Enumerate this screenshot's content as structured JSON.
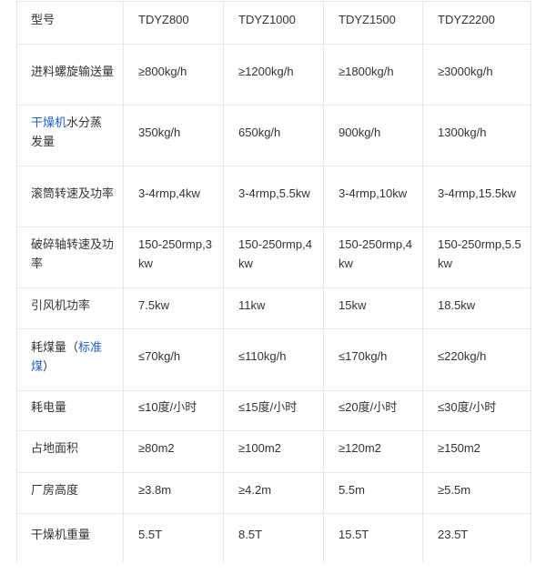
{
  "colors": {
    "link": "#1f5fcc",
    "text": "#333333",
    "border": "#e4e6f0"
  },
  "rows": [
    {
      "label": "型号",
      "values": [
        "TDYZ800",
        "TDYZ1000",
        "TDYZ1500",
        "TDYZ2200"
      ]
    },
    {
      "label": "进料螺旋输送量",
      "values": [
        "≥800kg/h",
        "≥1200kg/h",
        "≥1800kg/h",
        "≥3000kg/h"
      ]
    },
    {
      "label_link": "干燥机",
      "label": "水分蒸发量",
      "values": [
        "350kg/h",
        "650kg/h",
        "900kg/h",
        "1300kg/h"
      ]
    },
    {
      "label": "滚筒转速及功率",
      "values": [
        "3-4rmp,4kw",
        "3-4rmp,5.5kw",
        "3-4rmp,10kw",
        "3-4rmp,15.5kw"
      ]
    },
    {
      "label": "破碎轴转速及功率",
      "values": [
        "150-250rmp,3kw",
        "150-250rmp,4kw",
        "150-250rmp,4kw",
        "150-250rmp,5.5kw"
      ]
    },
    {
      "label": "引风机功率",
      "values": [
        "7.5kw",
        "11kw",
        "15kw",
        "18.5kw"
      ]
    },
    {
      "label": "耗煤量（",
      "label_link": "标准煤",
      "label_after": "）",
      "values": [
        "≤70kg/h",
        "≤110kg/h",
        "≤170kg/h",
        "≤220kg/h"
      ]
    },
    {
      "label": "耗电量",
      "values": [
        "≤10度/小时",
        "≤15度/小时",
        "≤20度/小时",
        "≤30度/小时"
      ]
    },
    {
      "label": "占地面积",
      "values": [
        "≥80m2",
        "≥100m2",
        "≥120m2",
        "≥150m2"
      ]
    },
    {
      "label": "厂房高度",
      "values": [
        "≥3.8m",
        "≥4.2m",
        "5.5m",
        "≥5.5m"
      ]
    },
    {
      "label": "干燥机重量",
      "values": [
        "5.5T",
        "8.5T",
        "15.5T",
        "23.5T"
      ]
    }
  ]
}
